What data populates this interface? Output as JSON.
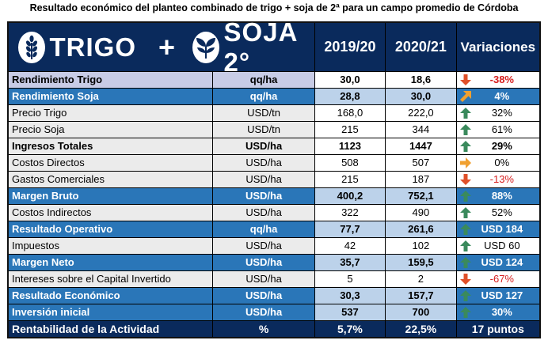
{
  "title": "Resultado económico del planteo combinado de trigo + soja de 2ª para un campo promedio de Córdoba",
  "header": {
    "brand_trigo": "TRIGO",
    "plus": "+",
    "brand_soja": "SOJA 2°",
    "col_2019": "2019/20",
    "col_2020": "2020/21",
    "col_var": "Variaciones"
  },
  "rows": [
    {
      "label": "Rendimiento Trigo",
      "unit": "qq/ha",
      "y1": "30,0",
      "y2": "18,6",
      "var": "-38%",
      "arrow": "down-red",
      "style": "lav"
    },
    {
      "label": "Rendimiento Soja",
      "unit": "qq/ha",
      "y1": "28,8",
      "y2": "30,0",
      "var": "4%",
      "arrow": "diag-orange",
      "style": "blue"
    },
    {
      "label": "Precio Trigo",
      "unit": "USD/tn",
      "y1": "168,0",
      "y2": "222,0",
      "var": "32%",
      "arrow": "up-green",
      "style": "plain"
    },
    {
      "label": "Precio Soja",
      "unit": "USD/tn",
      "y1": "215",
      "y2": "344",
      "var": "61%",
      "arrow": "up-green",
      "style": "plain"
    },
    {
      "label": "Ingresos Totales",
      "unit": "USD/ha",
      "y1": "1123",
      "y2": "1447",
      "var": "29%",
      "arrow": "up-green",
      "style": "bold"
    },
    {
      "label": "Costos Directos",
      "unit": "USD/ha",
      "y1": "508",
      "y2": "507",
      "var": "0%",
      "arrow": "right-orange",
      "style": "plain"
    },
    {
      "label": "Gastos Comerciales",
      "unit": "USD/ha",
      "y1": "215",
      "y2": "187",
      "var": "-13%",
      "arrow": "down-red",
      "style": "plain"
    },
    {
      "label": "Margen Bruto",
      "unit": "USD/ha",
      "y1": "400,2",
      "y2": "752,1",
      "var": "88%",
      "arrow": "up-green",
      "style": "blue"
    },
    {
      "label": "Costos Indirectos",
      "unit": "USD/ha",
      "y1": "322",
      "y2": "490",
      "var": "52%",
      "arrow": "up-green",
      "style": "plain"
    },
    {
      "label": "Resultado Operativo",
      "unit": "qq/ha",
      "y1": "77,7",
      "y2": "261,6",
      "var": "USD 184",
      "arrow": "up-green",
      "style": "blue"
    },
    {
      "label": "Impuestos",
      "unit": "USD/ha",
      "y1": "42",
      "y2": "102",
      "var": "USD 60",
      "arrow": "up-green",
      "style": "plain"
    },
    {
      "label": "Margen Neto",
      "unit": "USD/ha",
      "y1": "35,7",
      "y2": "159,5",
      "var": "USD 124",
      "arrow": "up-green",
      "style": "blue"
    },
    {
      "label": "Intereses sobre el Capital Invertido",
      "unit": "USD/ha",
      "y1": "5",
      "y2": "2",
      "var": "-67%",
      "arrow": "down-red",
      "style": "plain"
    },
    {
      "label": "Resultado Económico",
      "unit": "USD/ha",
      "y1": "30,3",
      "y2": "157,7",
      "var": "USD 127",
      "arrow": "up-green",
      "style": "blue"
    },
    {
      "label": "Inversión inicial",
      "unit": "USD/ha",
      "y1": "537",
      "y2": "700",
      "var": "30%",
      "arrow": "up-green",
      "style": "blue"
    }
  ],
  "footer": {
    "label": "Rentabilidad de la Actividad",
    "unit": "%",
    "y1": "5,7%",
    "y2": "22,5%",
    "var": "17 puntos"
  },
  "colors": {
    "navy": "#0a2a5c",
    "blue": "#2a76b8",
    "light_blue": "#bcd2ea",
    "lavender": "#c8cce6",
    "gray": "#ebebeb",
    "green_arrow": "#3a8a5c",
    "red_arrow": "#e0502a",
    "orange_arrow": "#f0a030"
  }
}
